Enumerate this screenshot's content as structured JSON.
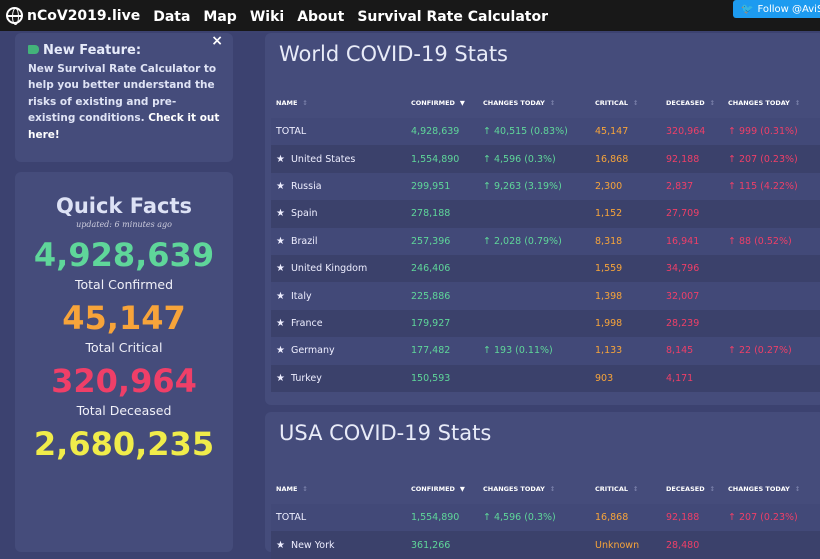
{
  "topbar": {
    "brand": "nCoV2019.live",
    "nav": [
      "Data",
      "Map",
      "Wiki",
      "About",
      "Survival Rate Calculator"
    ],
    "follow": "Follow @AviSc"
  },
  "notice": {
    "title": "New Feature:",
    "text": "New Survival Rate Calculator to help you better understand the risks of existing and pre-existing conditions. ",
    "link": "Check it out here!",
    "close": "×"
  },
  "facts": {
    "title": "Quick Facts",
    "updated": "updated: 6 minutes ago",
    "items": [
      {
        "value": "4,928,639",
        "label": "Total Confirmed",
        "color": "#5fd69a"
      },
      {
        "value": "45,147",
        "label": "Total Critical",
        "color": "#f7a43a"
      },
      {
        "value": "320,964",
        "label": "Total Deceased",
        "color": "#ef3f68"
      },
      {
        "value": "2,680,235",
        "label": "",
        "color": "#f0ec4a"
      }
    ]
  },
  "headers": [
    "NAME",
    "CONFIRMED",
    "CHANGES TODAY",
    "CRITICAL",
    "DECEASED",
    "CHANGES TODAY"
  ],
  "world": {
    "title": "World COVID-19 Stats",
    "rows": [
      [
        "TOTAL",
        "4,928,639",
        "↑ 40,515 (0.83%)",
        "45,147",
        "320,964",
        "↑ 999 (0.31%)"
      ],
      [
        "United States",
        "1,554,890",
        "↑ 4,596 (0.3%)",
        "16,868",
        "92,188",
        "↑ 207 (0.23%)"
      ],
      [
        "Russia",
        "299,951",
        "↑ 9,263 (3.19%)",
        "2,300",
        "2,837",
        "↑ 115 (4.22%)"
      ],
      [
        "Spain",
        "278,188",
        "",
        "1,152",
        "27,709",
        ""
      ],
      [
        "Brazil",
        "257,396",
        "↑ 2,028 (0.79%)",
        "8,318",
        "16,941",
        "↑ 88 (0.52%)"
      ],
      [
        "United Kingdom",
        "246,406",
        "",
        "1,559",
        "34,796",
        ""
      ],
      [
        "Italy",
        "225,886",
        "",
        "1,398",
        "32,007",
        ""
      ],
      [
        "France",
        "179,927",
        "",
        "1,998",
        "28,239",
        ""
      ],
      [
        "Germany",
        "177,482",
        "↑ 193 (0.11%)",
        "1,133",
        "8,145",
        "↑ 22 (0.27%)"
      ],
      [
        "Turkey",
        "150,593",
        "",
        "903",
        "4,171",
        ""
      ]
    ]
  },
  "usa": {
    "title": "USA COVID-19 Stats",
    "rows": [
      [
        "TOTAL",
        "1,554,890",
        "↑ 4,596 (0.3%)",
        "16,868",
        "92,188",
        "↑ 207 (0.23%)"
      ],
      [
        "New York",
        "361,266",
        "",
        "Unknown",
        "28,480",
        ""
      ]
    ]
  }
}
